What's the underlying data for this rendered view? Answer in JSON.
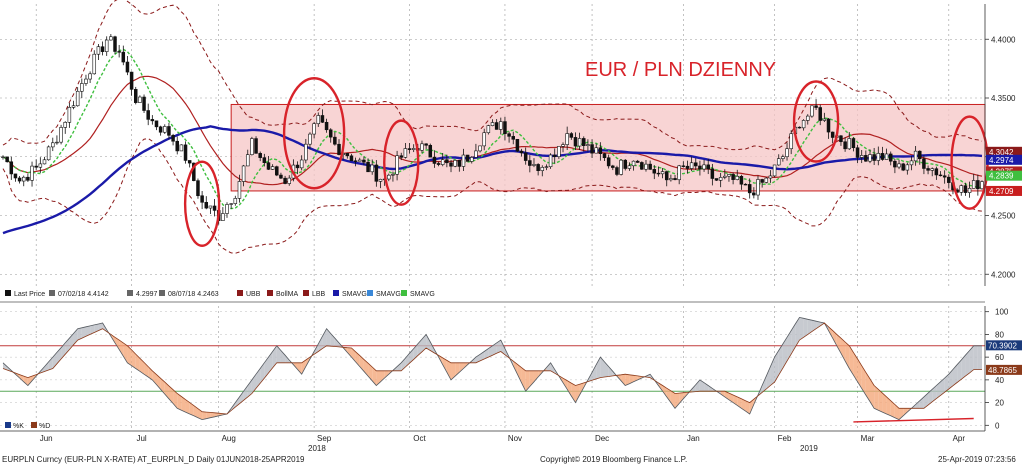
{
  "colors": {
    "candle": "#111111",
    "ubb": "#8b1a1a",
    "bollma": "#8b1a1a",
    "sma_long": "#1a1aa8",
    "sma_mid": "#b02020",
    "sma_green": "#3fbf3f",
    "range_box": "#f6c6c6",
    "range_border": "#c81e1e",
    "annotation": "#d8232a",
    "osc_k": "#f4a77a",
    "osc_d": "#b9bdc4"
  },
  "chart_data": [
    {
      "type": "candlestick",
      "title": "EUR / PLN DZIENNY",
      "ylim": [
        4.19,
        4.43
      ],
      "y_ticks": [
        "4.4000",
        "4.3500",
        "4.3000",
        "4.2500",
        "4.2000"
      ],
      "x_ticks": [
        "Jun",
        "Jul",
        "Aug",
        "Sep",
        "Oct",
        "Nov",
        "Dec",
        "Jan",
        "Feb",
        "Mar",
        "Apr"
      ],
      "year_labels": [
        "2018",
        "2019"
      ],
      "range_box": {
        "low": 4.2709,
        "high": 4.3445
      },
      "legend": [
        {
          "label": "Last Price",
          "color": "#111111"
        },
        {
          "label": "07/02/18 4.4142",
          "color": "#666666"
        },
        {
          "label": "4.2997",
          "color": "#666666"
        },
        {
          "label": "08/07/18 4.2463",
          "color": "#666666"
        },
        {
          "label": "UBB",
          "color": "#8b1a1a"
        },
        {
          "label": "BollMA",
          "color": "#8b1a1a"
        },
        {
          "label": "LBB",
          "color": "#8b1a1a"
        },
        {
          "label": "SMAVG",
          "color": "#1a1aa8"
        },
        {
          "label": "SMAVG",
          "color": "#3a88d8"
        },
        {
          "label": "SMAVG",
          "color": "#3fbf3f"
        }
      ],
      "value_badges": [
        {
          "label": "4.3042",
          "color": "#8b1a1a"
        },
        {
          "label": "4.2974",
          "color": "#1a1aa8"
        },
        {
          "label": "4.2875",
          "color": "#b02020"
        },
        {
          "label": "4.2839",
          "color": "#3fbf3f"
        },
        {
          "label": "4.2709",
          "color": "#c81e1e"
        }
      ],
      "anchors": [
        [
          0,
          4.3
        ],
        [
          4,
          4.28
        ],
        [
          8,
          4.29
        ],
        [
          12,
          4.31
        ],
        [
          16,
          4.34
        ],
        [
          20,
          4.37
        ],
        [
          25,
          4.4
        ],
        [
          28,
          4.39
        ],
        [
          32,
          4.35
        ],
        [
          36,
          4.33
        ],
        [
          40,
          4.32
        ],
        [
          44,
          4.3
        ],
        [
          48,
          4.26
        ],
        [
          52,
          4.25
        ],
        [
          56,
          4.27
        ],
        [
          60,
          4.31
        ],
        [
          64,
          4.29
        ],
        [
          68,
          4.28
        ],
        [
          72,
          4.3
        ],
        [
          76,
          4.33
        ],
        [
          80,
          4.31
        ],
        [
          84,
          4.3
        ],
        [
          88,
          4.29
        ],
        [
          92,
          4.28
        ],
        [
          96,
          4.3
        ],
        [
          100,
          4.31
        ],
        [
          104,
          4.3
        ],
        [
          108,
          4.29
        ],
        [
          112,
          4.3
        ],
        [
          116,
          4.32
        ],
        [
          120,
          4.33
        ],
        [
          124,
          4.31
        ],
        [
          128,
          4.29
        ],
        [
          132,
          4.3
        ],
        [
          136,
          4.32
        ],
        [
          140,
          4.31
        ],
        [
          144,
          4.3
        ],
        [
          148,
          4.29
        ],
        [
          152,
          4.3
        ],
        [
          156,
          4.29
        ],
        [
          160,
          4.28
        ],
        [
          164,
          4.29
        ],
        [
          168,
          4.29
        ],
        [
          172,
          4.28
        ],
        [
          176,
          4.28
        ],
        [
          180,
          4.27
        ],
        [
          184,
          4.28
        ],
        [
          188,
          4.3
        ],
        [
          192,
          4.33
        ],
        [
          196,
          4.34
        ],
        [
          200,
          4.32
        ],
        [
          204,
          4.31
        ],
        [
          208,
          4.3
        ],
        [
          212,
          4.3
        ],
        [
          216,
          4.29
        ],
        [
          220,
          4.3
        ],
        [
          224,
          4.29
        ],
        [
          228,
          4.28
        ],
        [
          232,
          4.27
        ],
        [
          236,
          4.28
        ]
      ],
      "n_candles": 237
    },
    {
      "type": "line",
      "subtitle": "Stochastic oscillator",
      "ylim": [
        -5,
        105
      ],
      "y_ticks": [
        "100",
        "80",
        "60",
        "40",
        "20",
        "0"
      ],
      "levels": [
        70,
        30
      ],
      "legend": [
        {
          "label": "%K",
          "color": "#1a3a8a"
        },
        {
          "label": "%D",
          "color": "#8b3a1a"
        }
      ],
      "value_badges": [
        {
          "label": "70.3902",
          "color": "#1a3a7a"
        },
        {
          "label": "48.7865",
          "color": "#8b3a1a"
        }
      ],
      "k_anchors": [
        [
          0,
          55
        ],
        [
          6,
          35
        ],
        [
          12,
          60
        ],
        [
          18,
          85
        ],
        [
          24,
          90
        ],
        [
          30,
          55
        ],
        [
          36,
          40
        ],
        [
          42,
          15
        ],
        [
          48,
          5
        ],
        [
          54,
          10
        ],
        [
          60,
          40
        ],
        [
          66,
          70
        ],
        [
          72,
          45
        ],
        [
          78,
          85
        ],
        [
          84,
          60
        ],
        [
          90,
          35
        ],
        [
          96,
          55
        ],
        [
          102,
          80
        ],
        [
          108,
          40
        ],
        [
          114,
          60
        ],
        [
          120,
          75
        ],
        [
          126,
          30
        ],
        [
          132,
          55
        ],
        [
          138,
          20
        ],
        [
          144,
          60
        ],
        [
          150,
          35
        ],
        [
          156,
          45
        ],
        [
          162,
          15
        ],
        [
          168,
          40
        ],
        [
          174,
          25
        ],
        [
          180,
          10
        ],
        [
          186,
          60
        ],
        [
          192,
          95
        ],
        [
          198,
          90
        ],
        [
          204,
          50
        ],
        [
          210,
          15
        ],
        [
          216,
          5
        ],
        [
          222,
          25
        ],
        [
          228,
          45
        ],
        [
          234,
          70
        ]
      ],
      "d_anchors": [
        [
          0,
          50
        ],
        [
          6,
          42
        ],
        [
          12,
          50
        ],
        [
          18,
          75
        ],
        [
          24,
          85
        ],
        [
          30,
          70
        ],
        [
          36,
          48
        ],
        [
          42,
          28
        ],
        [
          48,
          12
        ],
        [
          54,
          10
        ],
        [
          60,
          28
        ],
        [
          66,
          55
        ],
        [
          72,
          55
        ],
        [
          78,
          70
        ],
        [
          84,
          68
        ],
        [
          90,
          48
        ],
        [
          96,
          48
        ],
        [
          102,
          68
        ],
        [
          108,
          55
        ],
        [
          114,
          55
        ],
        [
          120,
          65
        ],
        [
          126,
          48
        ],
        [
          132,
          48
        ],
        [
          138,
          35
        ],
        [
          144,
          42
        ],
        [
          150,
          45
        ],
        [
          156,
          42
        ],
        [
          162,
          28
        ],
        [
          168,
          30
        ],
        [
          174,
          30
        ],
        [
          180,
          20
        ],
        [
          186,
          38
        ],
        [
          192,
          75
        ],
        [
          198,
          90
        ],
        [
          204,
          70
        ],
        [
          210,
          35
        ],
        [
          216,
          15
        ],
        [
          222,
          15
        ],
        [
          228,
          32
        ],
        [
          234,
          49
        ]
      ]
    }
  ],
  "footer": {
    "left": "EURPLN Curncy (EUR-PLN X-RATE) AT_EURPLN_D  Daily 01JUN2018-25APR2019",
    "center": "Copyright© 2019 Bloomberg Finance L.P.",
    "right": "25-Apr-2019 07:23:56"
  }
}
